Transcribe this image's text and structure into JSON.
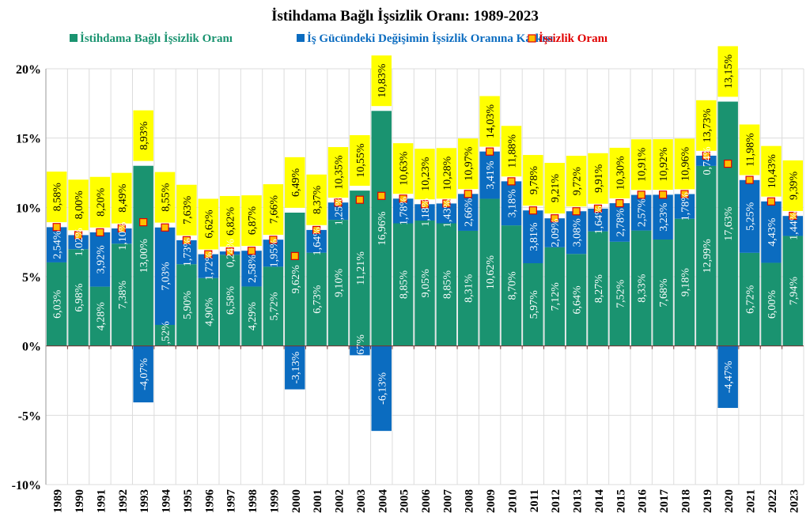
{
  "chart_data": {
    "type": "bar",
    "stacked": true,
    "title": "İstihdama Bağlı İşsizlik Oranı: 1989-2023",
    "xlabel": "",
    "ylabel": "",
    "ylim": [
      -10,
      20
    ],
    "yticks": [
      "20%",
      "15%",
      "10%",
      "5%",
      "0%",
      "-5%",
      "-10%"
    ],
    "ytick_values": [
      20,
      15,
      10,
      5,
      0,
      -5,
      -10
    ],
    "grid": true,
    "legend_position": "top",
    "categories": [
      "1989",
      "1990",
      "1991",
      "1992",
      "1993",
      "1994",
      "1995",
      "1996",
      "1997",
      "1998",
      "1999",
      "2000",
      "2001",
      "2002",
      "2003",
      "2004",
      "2005",
      "2006",
      "2007",
      "2008",
      "2009",
      "2010",
      "2011",
      "2012",
      "2013",
      "2014",
      "2015",
      "2016",
      "2017",
      "2018",
      "2019",
      "2020",
      "2021",
      "2022",
      "2023"
    ],
    "series": [
      {
        "name": "İstihdama Bağlı İşsizlik Oranı",
        "kind": "bar",
        "color": "#1a9370",
        "legend_color": "#1a9370",
        "values": [
          6.03,
          6.98,
          4.28,
          7.38,
          13.0,
          1.52,
          5.9,
          4.9,
          6.58,
          4.29,
          5.72,
          9.62,
          6.73,
          9.1,
          11.21,
          16.96,
          8.85,
          9.05,
          8.85,
          8.31,
          10.62,
          8.7,
          5.97,
          7.12,
          6.64,
          8.27,
          7.52,
          8.33,
          7.68,
          9.18,
          12.99,
          17.63,
          6.72,
          6.0,
          7.94
        ]
      },
      {
        "name": "İş Gücündeki Değişimin İşsizlik Oranına Katkısı",
        "kind": "bar",
        "color": "#0b6cc0",
        "legend_color": "#0b6cc0",
        "values": [
          2.54,
          1.02,
          3.92,
          1.1,
          -4.07,
          7.03,
          1.73,
          1.72,
          0.24,
          2.58,
          1.95,
          -3.13,
          1.64,
          1.25,
          -0.67,
          -6.13,
          1.78,
          1.18,
          1.43,
          2.66,
          3.41,
          3.18,
          3.81,
          2.09,
          3.08,
          1.64,
          2.78,
          2.57,
          3.23,
          1.78,
          0.74,
          -4.47,
          5.25,
          4.43,
          1.44
        ]
      },
      {
        "name": "İşsizlik Oranı",
        "kind": "marker",
        "color": "#ffc000",
        "legend_color": "#e00000",
        "values": [
          8.58,
          8.0,
          8.2,
          8.49,
          8.93,
          8.55,
          7.63,
          6.62,
          6.82,
          6.87,
          7.66,
          6.49,
          8.37,
          10.35,
          10.55,
          10.83,
          10.63,
          10.23,
          10.28,
          10.97,
          14.03,
          11.88,
          9.78,
          9.21,
          9.72,
          9.91,
          10.3,
          10.91,
          10.92,
          10.96,
          13.73,
          13.15,
          11.98,
          10.43,
          9.39
        ]
      }
    ],
    "label_background": "#ffff00"
  }
}
